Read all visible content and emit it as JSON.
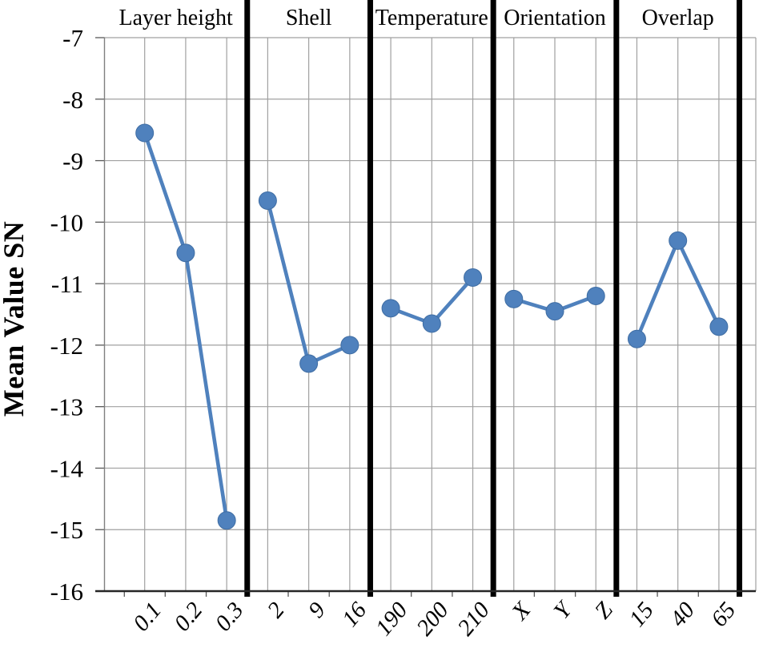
{
  "chart_data": {
    "type": "line",
    "title": "",
    "xlabel": "",
    "ylabel": "Mean Value SN",
    "ylim": [
      -16,
      -7
    ],
    "yticks": [
      -7,
      -8,
      -9,
      -10,
      -11,
      -12,
      -13,
      -14,
      -15,
      -16
    ],
    "grid": true,
    "legend": false,
    "marker": "circle",
    "panels": [
      {
        "label": "Layer height",
        "categories": [
          "0.1",
          "0.2",
          "0.3"
        ],
        "values": [
          -8.55,
          -10.5,
          -14.85
        ]
      },
      {
        "label": "Shell",
        "categories": [
          "2",
          "9",
          "16"
        ],
        "values": [
          -9.65,
          -12.3,
          -12.0
        ]
      },
      {
        "label": "Temperature",
        "categories": [
          "190",
          "200",
          "210"
        ],
        "values": [
          -11.4,
          -11.65,
          -10.9
        ]
      },
      {
        "label": "Orientation",
        "categories": [
          "X",
          "Y",
          "Z"
        ],
        "values": [
          -11.25,
          -11.45,
          -11.2
        ]
      },
      {
        "label": "Overlap",
        "categories": [
          "15",
          "40",
          "65"
        ],
        "values": [
          -11.9,
          -10.3,
          -11.7
        ]
      }
    ],
    "colors": {
      "series": "#4f81bd",
      "series_edge": "#3f6da3",
      "gridline": "#a0a0a0",
      "separator": "#000000",
      "x_axis": "#262626",
      "y_axis": "#7f7f7f",
      "tick": "#595959",
      "text": "#000000",
      "background": "#ffffff"
    }
  }
}
